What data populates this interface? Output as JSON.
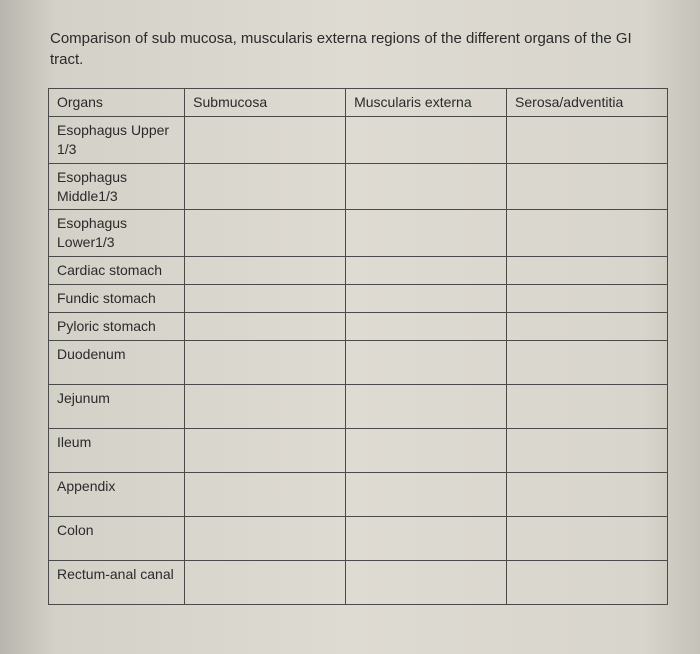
{
  "title": "Comparison of sub mucosa, muscularis externa regions of the different organs of the GI tract.",
  "table": {
    "columns": [
      "Organs",
      "Submucosa",
      "Muscularis externa",
      "Serosa/adventitia"
    ],
    "rows": [
      {
        "organ": "Esophagus Upper 1/3",
        "submucosa": "",
        "muscularis": "",
        "serosa": "",
        "tall": false
      },
      {
        "organ": "Esophagus Middle1/3",
        "submucosa": "",
        "muscularis": "",
        "serosa": "",
        "tall": false
      },
      {
        "organ": "Esophagus Lower1/3",
        "submucosa": "",
        "muscularis": "",
        "serosa": "",
        "tall": false
      },
      {
        "organ": "Cardiac stomach",
        "submucosa": "",
        "muscularis": "",
        "serosa": "",
        "tall": false
      },
      {
        "organ": "Fundic stomach",
        "submucosa": "",
        "muscularis": "",
        "serosa": "",
        "tall": false
      },
      {
        "organ": "Pyloric stomach",
        "submucosa": "",
        "muscularis": "",
        "serosa": "",
        "tall": false
      },
      {
        "organ": "Duodenum",
        "submucosa": "",
        "muscularis": "",
        "serosa": "",
        "tall": true
      },
      {
        "organ": "Jejunum",
        "submucosa": "",
        "muscularis": "",
        "serosa": "",
        "tall": true
      },
      {
        "organ": "Ileum",
        "submucosa": "",
        "muscularis": "",
        "serosa": "",
        "tall": true
      },
      {
        "organ": "Appendix",
        "submucosa": "",
        "muscularis": "",
        "serosa": "",
        "tall": true
      },
      {
        "organ": "Colon",
        "submucosa": "",
        "muscularis": "",
        "serosa": "",
        "tall": true
      },
      {
        "organ": "Rectum-anal canal",
        "submucosa": "",
        "muscularis": "",
        "serosa": "",
        "tall": true
      }
    ]
  }
}
